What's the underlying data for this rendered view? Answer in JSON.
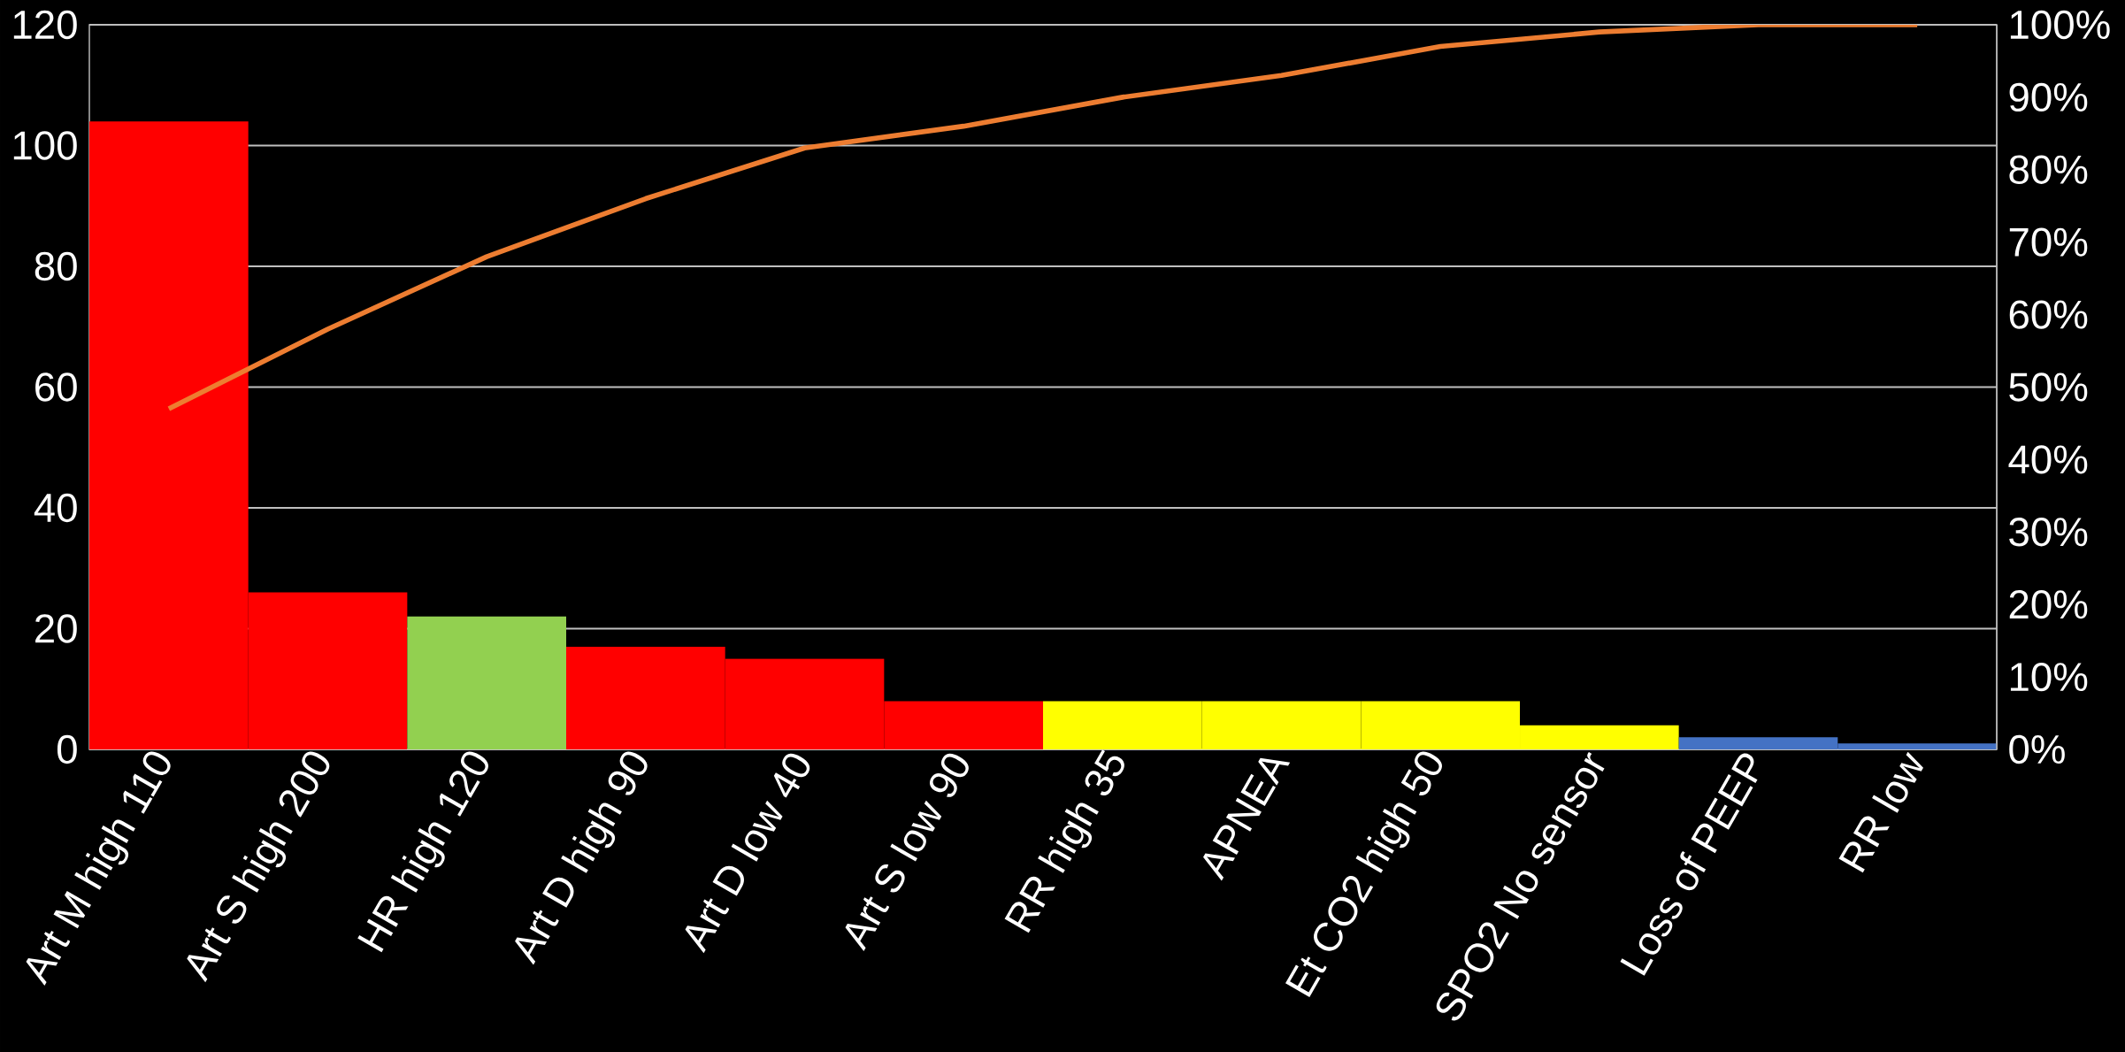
{
  "chart_data": {
    "type": "bar",
    "categories": [
      "Art M high 110",
      "Art S high 200",
      "HR high 120",
      "Art D high 90",
      "Art D low 40",
      "Art S low 90",
      "RR high 35",
      "APNEA",
      "Et CO2 high 50",
      "SPO2 No sensor",
      "Loss of PEEP",
      "RR low"
    ],
    "series": [
      {
        "values": [
          104,
          26,
          22,
          17,
          15,
          8,
          8,
          8,
          8,
          4,
          2,
          1
        ],
        "colors": [
          "#ff0000",
          "#ff0000",
          "#92d050",
          "#ff0000",
          "#ff0000",
          "#ff0000",
          "#ffff00",
          "#ffff00",
          "#ffff00",
          "#ffff00",
          "#4472c4",
          "#4472c4"
        ]
      },
      {
        "type": "line",
        "axis": "y2",
        "color": "#ed7d31",
        "values": [
          47,
          58,
          68,
          76,
          83,
          86,
          90,
          93,
          97,
          99,
          100,
          100
        ]
      }
    ],
    "ylim": [
      0,
      120
    ],
    "yticks": [
      0,
      20,
      40,
      60,
      80,
      100,
      120
    ],
    "y2lim": [
      0,
      100
    ],
    "y2ticks": [
      {
        "value": 0,
        "label": "0%"
      },
      {
        "value": 10,
        "label": "10%"
      },
      {
        "value": 20,
        "label": "20%"
      },
      {
        "value": 30,
        "label": "30%"
      },
      {
        "value": 40,
        "label": "40%"
      },
      {
        "value": 50,
        "label": "50%"
      },
      {
        "value": 60,
        "label": "60%"
      },
      {
        "value": 70,
        "label": "70%"
      },
      {
        "value": 80,
        "label": "80%"
      },
      {
        "value": 90,
        "label": "90%"
      },
      {
        "value": 100,
        "label": "100%"
      }
    ],
    "grid": "y"
  }
}
